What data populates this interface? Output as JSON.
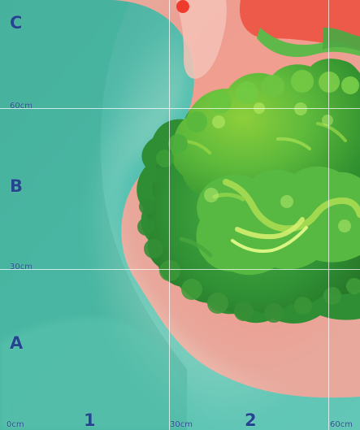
{
  "grid": {
    "row_labels": [
      "C",
      "B",
      "A"
    ],
    "column_labels": [
      "1",
      "2"
    ],
    "scale_labels": {
      "x_start": "0cm",
      "x_mid": "30cm",
      "x_end": "60cm",
      "y_mid": "30cm",
      "y_top": "60cm"
    }
  },
  "colors": {
    "teal_background": "#56c4b4",
    "pink_bed": "#f09a8d",
    "lettuce_green": "#58b63b",
    "label_blue": "#24458f"
  }
}
